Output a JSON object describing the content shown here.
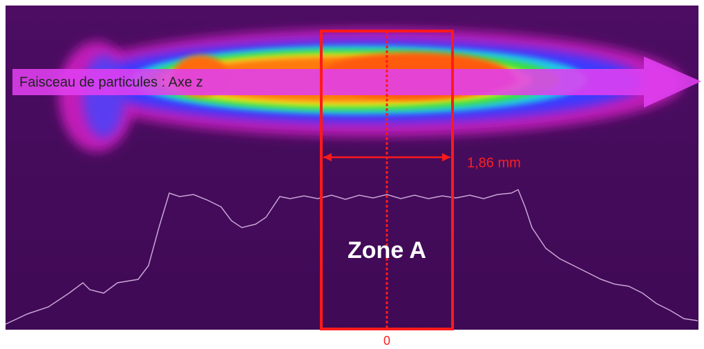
{
  "beam_label": "Faisceau de particules : Axe z",
  "dimension_label": "1,86 mm",
  "zone_label": "Zone A",
  "origin_label": "0"
}
